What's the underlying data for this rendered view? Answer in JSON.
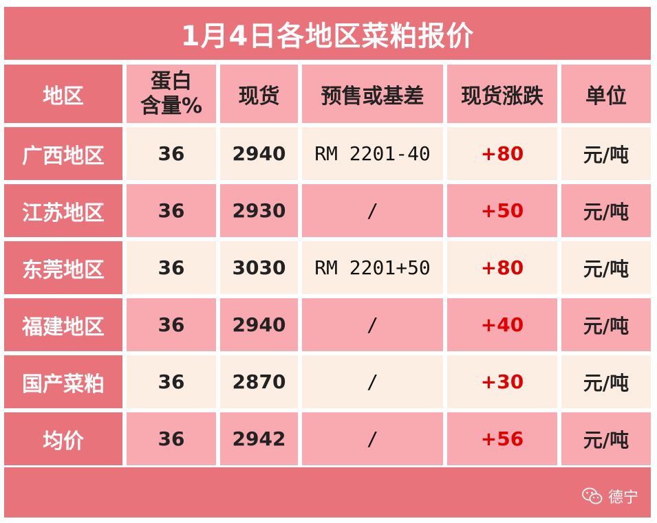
{
  "title": "1月4日各地区菜粕报价",
  "headers": {
    "region": "地区",
    "protein_line1": "蛋白",
    "protein_line2": "含量%",
    "spot": "现货",
    "presale": "预售或基差",
    "change": "现货涨跌",
    "unit": "单位"
  },
  "rows": [
    {
      "region": "广西地区",
      "protein": "36",
      "spot": "2940",
      "presale": "RM 2201-40",
      "change": "+80",
      "unit": "元/吨"
    },
    {
      "region": "江苏地区",
      "protein": "36",
      "spot": "2930",
      "presale": "/",
      "change": "+50",
      "unit": "元/吨"
    },
    {
      "region": "东莞地区",
      "protein": "36",
      "spot": "3030",
      "presale": "RM 2201+50",
      "change": "+80",
      "unit": "元/吨"
    },
    {
      "region": "福建地区",
      "protein": "36",
      "spot": "2940",
      "presale": "/",
      "change": "+40",
      "unit": "元/吨"
    },
    {
      "region": "国产菜粕",
      "protein": "36",
      "spot": "2870",
      "presale": "/",
      "change": "+30",
      "unit": "元/吨"
    },
    {
      "region": "均价",
      "protein": "36",
      "spot": "2942",
      "presale": "/",
      "change": "+56",
      "unit": "元/吨"
    }
  ],
  "watermark": {
    "text": "德宁",
    "icon": "wechat-icon"
  },
  "colors": {
    "dark_pink": "#e8737b",
    "light_pink": "#f9aab0",
    "cream": "#fdeee4",
    "change_red": "#e00000"
  }
}
